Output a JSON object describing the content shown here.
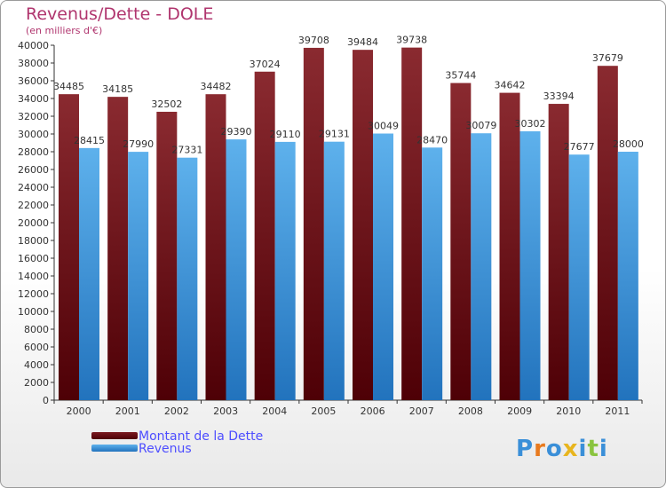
{
  "header": {
    "title": "Revenus/Dette - DOLE",
    "subtitle": "(en milliers d'€)"
  },
  "logo": {
    "text": "Proxiti",
    "letter_colors": [
      "#3a8fd8",
      "#e87a1e",
      "#3a8fd8",
      "#e8b51e",
      "#3a8fd8",
      "#8ac43f",
      "#3a8fd8"
    ]
  },
  "colors": {
    "debt": "#6e0a12",
    "debt_light": "#a03a40",
    "revenue": "#2b82cc",
    "revenue_light": "#67b8ee",
    "axis": "#222222",
    "label": "#333333"
  },
  "chart_data": {
    "type": "bar",
    "title": "Revenus/Dette - DOLE",
    "subtitle": "(en milliers d'€)",
    "categories": [
      "2000",
      "2001",
      "2002",
      "2003",
      "2004",
      "2005",
      "2006",
      "2007",
      "2008",
      "2009",
      "2010",
      "2011"
    ],
    "series": [
      {
        "name": "Montant de la Dette",
        "values": [
          34485,
          34185,
          32502,
          34482,
          37024,
          39708,
          39484,
          39738,
          35744,
          34642,
          33394,
          37679
        ]
      },
      {
        "name": "Revenus",
        "values": [
          28415,
          27990,
          27331,
          29390,
          29110,
          29131,
          30049,
          28470,
          30079,
          30302,
          27677,
          28000
        ]
      }
    ],
    "ylim": [
      0,
      40000
    ],
    "yticks": [
      "0",
      "2000",
      "4000",
      "6000",
      "8000",
      "10000",
      "12000",
      "14000",
      "16000",
      "18000",
      "20000",
      "22000",
      "24000",
      "26000",
      "28000",
      "30000",
      "32000",
      "34000",
      "36000",
      "38000",
      "40000"
    ],
    "legend_position": "bottom-left",
    "grid": false
  }
}
